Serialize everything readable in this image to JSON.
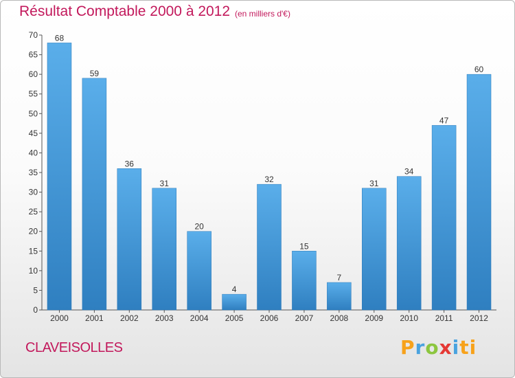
{
  "chart_data": {
    "type": "bar",
    "title": "Résultat Comptable 2000 à 2012",
    "subtitle": "(en milliers d'€)",
    "categories": [
      "2000",
      "2001",
      "2002",
      "2003",
      "2004",
      "2005",
      "2006",
      "2007",
      "2008",
      "2009",
      "2010",
      "2011",
      "2012"
    ],
    "values": [
      68,
      59,
      36,
      31,
      20,
      4,
      32,
      15,
      7,
      31,
      34,
      47,
      60
    ],
    "y_ticks": [
      0,
      5,
      10,
      15,
      20,
      25,
      30,
      35,
      40,
      45,
      50,
      55,
      60,
      65,
      70
    ],
    "ylim": [
      0,
      70
    ],
    "xlabel": "",
    "ylabel": "",
    "grid": false,
    "bar_color": "#4a9fdf"
  },
  "footer": {
    "commune": "CLAVEISOLLES",
    "brand": "Proxiti"
  }
}
